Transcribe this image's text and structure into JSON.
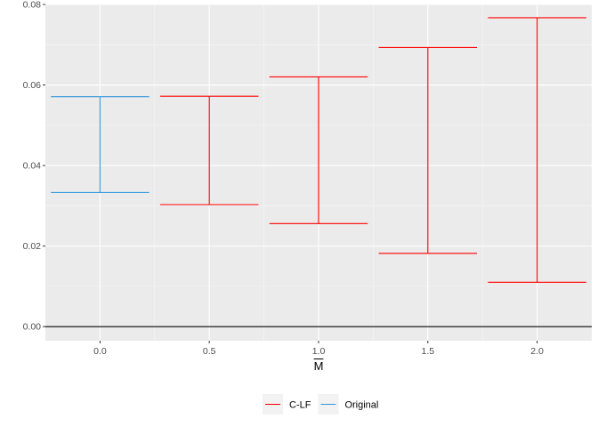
{
  "chart_data": {
    "type": "errorbar",
    "xlabel": "M",
    "xlabel_overline": true,
    "ylabel": "",
    "xlim": [
      -0.25,
      2.25
    ],
    "ylim": [
      -0.0035,
      0.08
    ],
    "x_ticks": [
      {
        "value": 0.0,
        "label": "0.0"
      },
      {
        "value": 0.5,
        "label": "0.5"
      },
      {
        "value": 1.0,
        "label": "1.0"
      },
      {
        "value": 1.5,
        "label": "1.5"
      },
      {
        "value": 2.0,
        "label": "2.0"
      }
    ],
    "y_ticks": [
      {
        "value": 0.0,
        "label": "0.00"
      },
      {
        "value": 0.02,
        "label": "0.02"
      },
      {
        "value": 0.04,
        "label": "0.04"
      },
      {
        "value": 0.06,
        "label": "0.06"
      },
      {
        "value": 0.08,
        "label": "0.08"
      }
    ],
    "hline": {
      "y": 0.0,
      "color": "#000000"
    },
    "grid": true,
    "legend_position": "bottom",
    "series": [
      {
        "name": "C-LF",
        "color": "#FF0000",
        "points": [
          {
            "x": 0.5,
            "ymin": 0.0303,
            "ymax": 0.0572
          },
          {
            "x": 1.0,
            "ymin": 0.0256,
            "ymax": 0.062
          },
          {
            "x": 1.5,
            "ymin": 0.0182,
            "ymax": 0.0693
          },
          {
            "x": 2.0,
            "ymin": 0.011,
            "ymax": 0.0767
          }
        ]
      },
      {
        "name": "Original",
        "color": "#3399DD",
        "points": [
          {
            "x": 0.0,
            "ymin": 0.0333,
            "ymax": 0.0571
          }
        ]
      }
    ]
  }
}
